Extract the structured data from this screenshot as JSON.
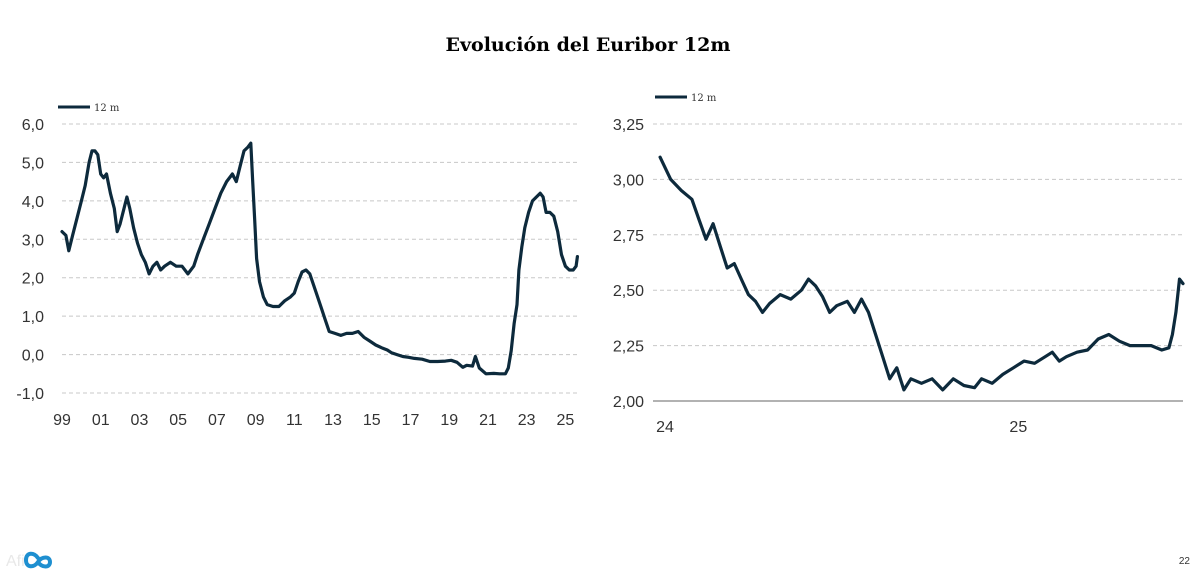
{
  "page": {
    "title": "Evolución del Euribor 12m",
    "page_number": "22",
    "logo_text": "Afi"
  },
  "colors": {
    "series": "#0d2a3c",
    "grid": "#c8c8c8"
  },
  "chart_data": [
    {
      "type": "line",
      "legend": "12 m",
      "x_unit": "year",
      "xlim": [
        1999.0,
        2025.65
      ],
      "ylim": [
        -1.0,
        6.0
      ],
      "y_ticks": [
        "-1,0",
        "0,0",
        "1,0",
        "2,0",
        "3,0",
        "4,0",
        "5,0",
        "6,0"
      ],
      "y_tick_values": [
        -1,
        0,
        1,
        2,
        3,
        4,
        5,
        6
      ],
      "x_ticks": [
        "99",
        "01",
        "03",
        "05",
        "07",
        "09",
        "11",
        "13",
        "15",
        "17",
        "19",
        "21",
        "23",
        "25"
      ],
      "x_tick_values": [
        1999,
        2001,
        2003,
        2005,
        2007,
        2009,
        2011,
        2013,
        2015,
        2017,
        2019,
        2021,
        2023,
        2025
      ],
      "series": [
        {
          "name": "12 m",
          "points": [
            [
              1999.0,
              3.2
            ],
            [
              1999.2,
              3.1
            ],
            [
              1999.35,
              2.7
            ],
            [
              1999.55,
              3.1
            ],
            [
              1999.8,
              3.6
            ],
            [
              2000.0,
              4.0
            ],
            [
              2000.2,
              4.4
            ],
            [
              2000.4,
              5.0
            ],
            [
              2000.55,
              5.3
            ],
            [
              2000.7,
              5.3
            ],
            [
              2000.85,
              5.2
            ],
            [
              2001.0,
              4.7
            ],
            [
              2001.15,
              4.6
            ],
            [
              2001.3,
              4.7
            ],
            [
              2001.5,
              4.2
            ],
            [
              2001.7,
              3.8
            ],
            [
              2001.85,
              3.2
            ],
            [
              2002.0,
              3.4
            ],
            [
              2002.2,
              3.8
            ],
            [
              2002.35,
              4.1
            ],
            [
              2002.5,
              3.8
            ],
            [
              2002.7,
              3.3
            ],
            [
              2002.9,
              2.9
            ],
            [
              2003.1,
              2.6
            ],
            [
              2003.3,
              2.4
            ],
            [
              2003.5,
              2.1
            ],
            [
              2003.7,
              2.3
            ],
            [
              2003.9,
              2.4
            ],
            [
              2004.1,
              2.2
            ],
            [
              2004.3,
              2.3
            ],
            [
              2004.6,
              2.4
            ],
            [
              2004.9,
              2.3
            ],
            [
              2005.2,
              2.3
            ],
            [
              2005.5,
              2.1
            ],
            [
              2005.8,
              2.3
            ],
            [
              2006.0,
              2.6
            ],
            [
              2006.3,
              3.0
            ],
            [
              2006.6,
              3.4
            ],
            [
              2006.9,
              3.8
            ],
            [
              2007.2,
              4.2
            ],
            [
              2007.5,
              4.5
            ],
            [
              2007.8,
              4.7
            ],
            [
              2008.0,
              4.5
            ],
            [
              2008.2,
              4.9
            ],
            [
              2008.4,
              5.3
            ],
            [
              2008.6,
              5.4
            ],
            [
              2008.75,
              5.5
            ],
            [
              2008.85,
              4.5
            ],
            [
              2008.95,
              3.5
            ],
            [
              2009.05,
              2.5
            ],
            [
              2009.2,
              1.9
            ],
            [
              2009.4,
              1.5
            ],
            [
              2009.6,
              1.3
            ],
            [
              2009.9,
              1.25
            ],
            [
              2010.2,
              1.25
            ],
            [
              2010.5,
              1.4
            ],
            [
              2010.8,
              1.5
            ],
            [
              2011.0,
              1.6
            ],
            [
              2011.2,
              1.9
            ],
            [
              2011.4,
              2.15
            ],
            [
              2011.6,
              2.2
            ],
            [
              2011.8,
              2.1
            ],
            [
              2012.0,
              1.8
            ],
            [
              2012.2,
              1.5
            ],
            [
              2012.4,
              1.2
            ],
            [
              2012.6,
              0.9
            ],
            [
              2012.8,
              0.6
            ],
            [
              2013.1,
              0.55
            ],
            [
              2013.4,
              0.5
            ],
            [
              2013.7,
              0.55
            ],
            [
              2014.0,
              0.55
            ],
            [
              2014.3,
              0.6
            ],
            [
              2014.6,
              0.45
            ],
            [
              2014.9,
              0.35
            ],
            [
              2015.2,
              0.25
            ],
            [
              2015.5,
              0.18
            ],
            [
              2015.8,
              0.12
            ],
            [
              2016.0,
              0.05
            ],
            [
              2016.3,
              0.0
            ],
            [
              2016.6,
              -0.05
            ],
            [
              2016.9,
              -0.07
            ],
            [
              2017.2,
              -0.1
            ],
            [
              2017.6,
              -0.12
            ],
            [
              2018.0,
              -0.18
            ],
            [
              2018.4,
              -0.18
            ],
            [
              2018.8,
              -0.17
            ],
            [
              2019.1,
              -0.15
            ],
            [
              2019.4,
              -0.2
            ],
            [
              2019.7,
              -0.33
            ],
            [
              2019.9,
              -0.28
            ],
            [
              2020.2,
              -0.3
            ],
            [
              2020.35,
              -0.05
            ],
            [
              2020.55,
              -0.35
            ],
            [
              2020.9,
              -0.5
            ],
            [
              2021.3,
              -0.49
            ],
            [
              2021.6,
              -0.5
            ],
            [
              2021.9,
              -0.5
            ],
            [
              2022.05,
              -0.35
            ],
            [
              2022.2,
              0.1
            ],
            [
              2022.35,
              0.8
            ],
            [
              2022.5,
              1.3
            ],
            [
              2022.6,
              2.2
            ],
            [
              2022.75,
              2.8
            ],
            [
              2022.9,
              3.3
            ],
            [
              2023.1,
              3.7
            ],
            [
              2023.3,
              4.0
            ],
            [
              2023.5,
              4.1
            ],
            [
              2023.7,
              4.2
            ],
            [
              2023.85,
              4.1
            ],
            [
              2024.0,
              3.7
            ],
            [
              2024.2,
              3.7
            ],
            [
              2024.4,
              3.6
            ],
            [
              2024.6,
              3.2
            ],
            [
              2024.8,
              2.6
            ],
            [
              2025.0,
              2.3
            ],
            [
              2025.2,
              2.2
            ],
            [
              2025.4,
              2.2
            ],
            [
              2025.55,
              2.3
            ],
            [
              2025.62,
              2.55
            ]
          ]
        }
      ]
    },
    {
      "type": "line",
      "legend": "12 m",
      "x_unit": "year",
      "xlim": [
        2024.0,
        2025.5
      ],
      "ylim": [
        2.0,
        3.25
      ],
      "y_ticks": [
        "2,00",
        "2,25",
        "2,50",
        "2,75",
        "3,00",
        "3,25"
      ],
      "y_tick_values": [
        2.0,
        2.25,
        2.5,
        2.75,
        3.0,
        3.25
      ],
      "x_ticks": [
        "24",
        "25"
      ],
      "x_tick_values": [
        2024.0,
        2025.0
      ],
      "series": [
        {
          "name": "12 m",
          "points": [
            [
              2024.02,
              3.1
            ],
            [
              2024.05,
              3.0
            ],
            [
              2024.08,
              2.95
            ],
            [
              2024.11,
              2.91
            ],
            [
              2024.13,
              2.82
            ],
            [
              2024.15,
              2.73
            ],
            [
              2024.17,
              2.8
            ],
            [
              2024.19,
              2.7
            ],
            [
              2024.21,
              2.6
            ],
            [
              2024.23,
              2.62
            ],
            [
              2024.25,
              2.55
            ],
            [
              2024.27,
              2.48
            ],
            [
              2024.29,
              2.45
            ],
            [
              2024.31,
              2.4
            ],
            [
              2024.33,
              2.44
            ],
            [
              2024.36,
              2.48
            ],
            [
              2024.39,
              2.46
            ],
            [
              2024.42,
              2.5
            ],
            [
              2024.44,
              2.55
            ],
            [
              2024.46,
              2.52
            ],
            [
              2024.48,
              2.47
            ],
            [
              2024.5,
              2.4
            ],
            [
              2024.52,
              2.43
            ],
            [
              2024.55,
              2.45
            ],
            [
              2024.57,
              2.4
            ],
            [
              2024.59,
              2.46
            ],
            [
              2024.61,
              2.4
            ],
            [
              2024.63,
              2.3
            ],
            [
              2024.65,
              2.2
            ],
            [
              2024.67,
              2.1
            ],
            [
              2024.69,
              2.15
            ],
            [
              2024.71,
              2.05
            ],
            [
              2024.73,
              2.1
            ],
            [
              2024.76,
              2.08
            ],
            [
              2024.79,
              2.1
            ],
            [
              2024.82,
              2.05
            ],
            [
              2024.85,
              2.1
            ],
            [
              2024.88,
              2.07
            ],
            [
              2024.91,
              2.06
            ],
            [
              2024.93,
              2.1
            ],
            [
              2024.96,
              2.08
            ],
            [
              2024.99,
              2.12
            ],
            [
              2025.02,
              2.15
            ],
            [
              2025.05,
              2.18
            ],
            [
              2025.08,
              2.17
            ],
            [
              2025.11,
              2.2
            ],
            [
              2025.13,
              2.22
            ],
            [
              2025.15,
              2.18
            ],
            [
              2025.17,
              2.2
            ],
            [
              2025.2,
              2.22
            ],
            [
              2025.23,
              2.23
            ],
            [
              2025.26,
              2.28
            ],
            [
              2025.29,
              2.3
            ],
            [
              2025.32,
              2.27
            ],
            [
              2025.35,
              2.25
            ],
            [
              2025.38,
              2.25
            ],
            [
              2025.41,
              2.25
            ],
            [
              2025.44,
              2.23
            ],
            [
              2025.46,
              2.24
            ],
            [
              2025.47,
              2.3
            ],
            [
              2025.48,
              2.4
            ],
            [
              2025.49,
              2.55
            ],
            [
              2025.5,
              2.53
            ]
          ]
        }
      ]
    }
  ]
}
